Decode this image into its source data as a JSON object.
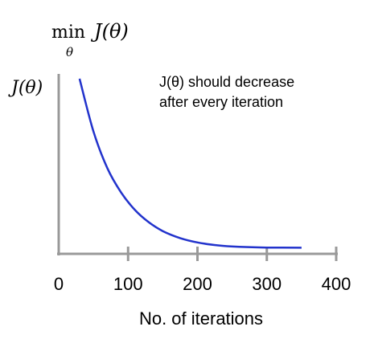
{
  "formula": {
    "min": "min",
    "sub": "θ",
    "expr": "J(θ)"
  },
  "chart_data": {
    "type": "line",
    "ylabel": "J(θ)",
    "xlabel": "No. of iterations",
    "annotation": [
      "J(θ) should decrease",
      "after every iteration"
    ],
    "xlim": [
      0,
      400
    ],
    "ylim": [
      0,
      1
    ],
    "x_ticks": [
      0,
      100,
      200,
      300,
      400
    ],
    "x_tick_labels": [
      "0",
      "100",
      "200",
      "300",
      "400"
    ],
    "grid": false,
    "line_color": "#2233cc",
    "axis_color": "#999999",
    "series": [
      {
        "x": [
          30,
          50,
          70,
          90,
          110,
          130,
          150,
          175,
          200,
          230,
          260,
          300,
          350
        ],
        "y": [
          1.0,
          0.7,
          0.49,
          0.35,
          0.25,
          0.18,
          0.13,
          0.09,
          0.065,
          0.048,
          0.04,
          0.036,
          0.035
        ]
      }
    ]
  }
}
